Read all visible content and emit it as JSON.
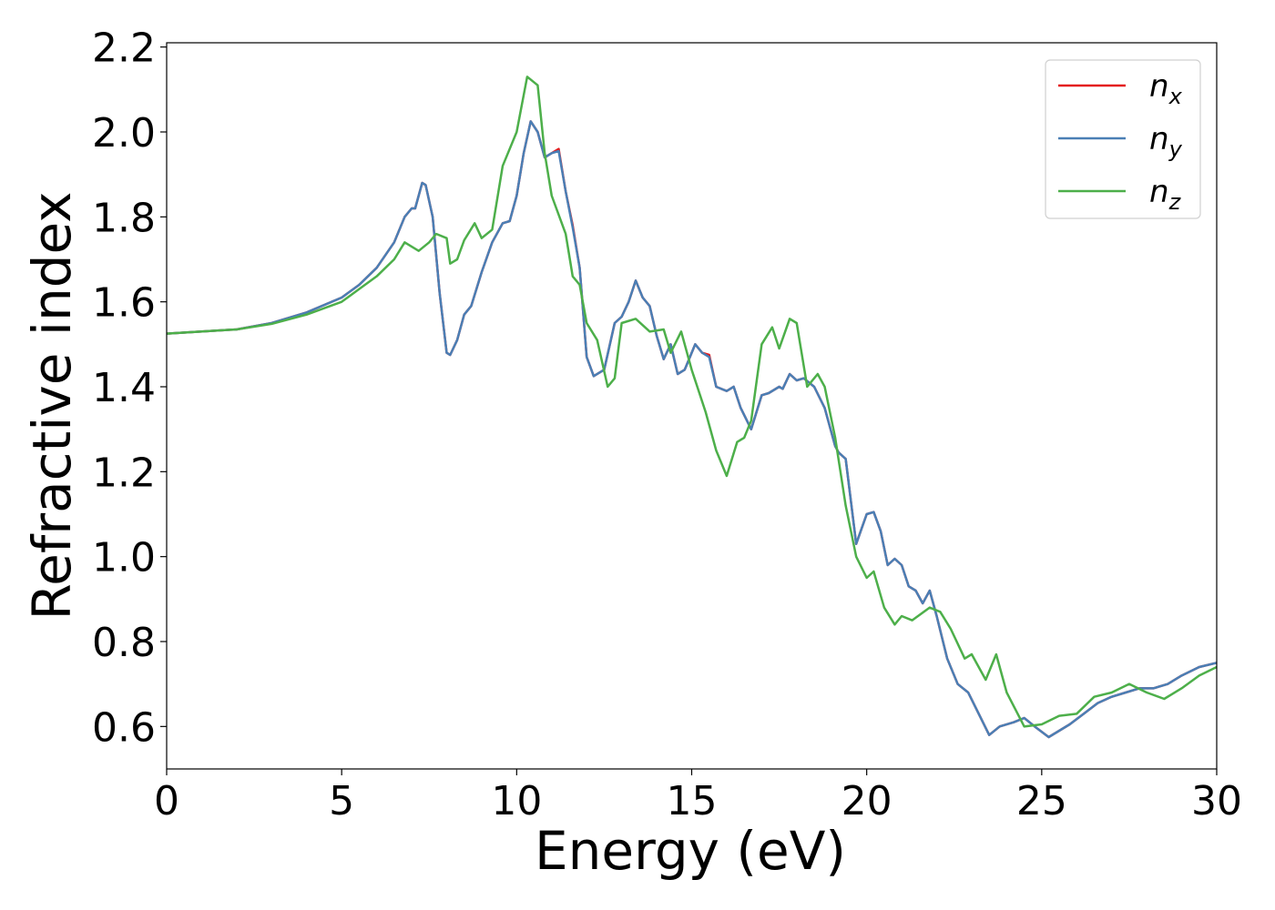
{
  "chart_data": {
    "type": "line",
    "xlabel": "Energy (eV)",
    "ylabel": "Refractive index",
    "xlim": [
      0,
      30
    ],
    "ylim": [
      0.5,
      2.21
    ],
    "xticks": [
      0,
      5,
      10,
      15,
      20,
      25,
      30
    ],
    "yticks": [
      0.6,
      0.8,
      {
        "value": 1.0,
        "label": "1.0"
      },
      1.2,
      1.4,
      1.6,
      1.8,
      {
        "value": 2.0,
        "label": "2.0"
      },
      2.2
    ],
    "legend": "upper right",
    "grid": false,
    "series": [
      {
        "name": "nx",
        "color": "#e41a1c",
        "x": [
          0,
          2,
          3,
          4,
          5,
          5.5,
          6,
          6.5,
          6.8,
          7.0,
          7.1,
          7.3,
          7.4,
          7.6,
          7.8,
          8.0,
          8.1,
          8.3,
          8.5,
          8.7,
          9.0,
          9.3,
          9.6,
          9.8,
          10.0,
          10.2,
          10.4,
          10.6,
          10.8,
          11.0,
          11.2,
          11.4,
          11.6,
          11.8,
          12.0,
          12.2,
          12.5,
          12.8,
          13.0,
          13.2,
          13.4,
          13.6,
          13.8,
          14.0,
          14.2,
          14.4,
          14.6,
          14.8,
          15.1,
          15.3,
          15.5,
          15.7,
          16.0,
          16.2,
          16.4,
          16.7,
          17.0,
          17.2,
          17.5,
          17.6,
          17.8,
          18.0,
          18.2,
          18.5,
          18.8,
          19.1,
          19.2,
          19.4,
          19.7,
          20.0,
          20.2,
          20.4,
          20.6,
          20.8,
          21.0,
          21.2,
          21.4,
          21.6,
          21.8,
          22.0,
          22.3,
          22.6,
          22.9,
          23.2,
          23.5,
          23.8,
          24.2,
          24.5,
          24.8,
          25.2,
          25.5,
          25.8,
          26.2,
          26.6,
          27.0,
          27.4,
          27.8,
          28.2,
          28.6,
          29.0,
          29.5,
          30
        ],
        "values": [
          1.525,
          1.535,
          1.55,
          1.575,
          1.61,
          1.64,
          1.68,
          1.74,
          1.8,
          1.82,
          1.82,
          1.88,
          1.875,
          1.8,
          1.62,
          1.48,
          1.475,
          1.51,
          1.57,
          1.59,
          1.67,
          1.74,
          1.785,
          1.79,
          1.85,
          1.95,
          2.025,
          2.0,
          1.94,
          1.95,
          1.96,
          1.86,
          1.78,
          1.68,
          1.47,
          1.425,
          1.44,
          1.55,
          1.565,
          1.6,
          1.65,
          1.61,
          1.59,
          1.52,
          1.465,
          1.5,
          1.43,
          1.44,
          1.5,
          1.48,
          1.475,
          1.4,
          1.39,
          1.4,
          1.35,
          1.3,
          1.38,
          1.385,
          1.4,
          1.395,
          1.43,
          1.415,
          1.42,
          1.4,
          1.35,
          1.26,
          1.245,
          1.23,
          1.03,
          1.1,
          1.105,
          1.06,
          0.98,
          0.995,
          0.98,
          0.93,
          0.92,
          0.89,
          0.92,
          0.86,
          0.76,
          0.7,
          0.68,
          0.63,
          0.58,
          0.6,
          0.61,
          0.62,
          0.6,
          0.575,
          0.59,
          0.605,
          0.63,
          0.655,
          0.67,
          0.68,
          0.69,
          0.69,
          0.7,
          0.72,
          0.74,
          0.75
        ]
      },
      {
        "name": "ny",
        "color": "#4a7fb5",
        "x": [
          0,
          2,
          3,
          4,
          5,
          5.5,
          6,
          6.5,
          6.8,
          7.0,
          7.1,
          7.3,
          7.4,
          7.6,
          7.8,
          8.0,
          8.1,
          8.3,
          8.5,
          8.7,
          9.0,
          9.3,
          9.6,
          9.8,
          10.0,
          10.2,
          10.4,
          10.6,
          10.8,
          11.0,
          11.2,
          11.4,
          11.6,
          11.8,
          12.0,
          12.2,
          12.5,
          12.8,
          13.0,
          13.2,
          13.4,
          13.6,
          13.8,
          14.0,
          14.2,
          14.4,
          14.6,
          14.8,
          15.1,
          15.3,
          15.5,
          15.7,
          16.0,
          16.2,
          16.4,
          16.7,
          17.0,
          17.2,
          17.5,
          17.6,
          17.8,
          18.0,
          18.2,
          18.5,
          18.8,
          19.1,
          19.2,
          19.4,
          19.7,
          20.0,
          20.2,
          20.4,
          20.6,
          20.8,
          21.0,
          21.2,
          21.4,
          21.6,
          21.8,
          22.0,
          22.3,
          22.6,
          22.9,
          23.2,
          23.5,
          23.8,
          24.2,
          24.5,
          24.8,
          25.2,
          25.5,
          25.8,
          26.2,
          26.6,
          27.0,
          27.4,
          27.8,
          28.2,
          28.6,
          29.0,
          29.5,
          30
        ],
        "values": [
          1.525,
          1.535,
          1.55,
          1.575,
          1.61,
          1.64,
          1.68,
          1.74,
          1.8,
          1.82,
          1.82,
          1.88,
          1.875,
          1.8,
          1.62,
          1.48,
          1.475,
          1.51,
          1.57,
          1.59,
          1.67,
          1.74,
          1.785,
          1.79,
          1.85,
          1.95,
          2.025,
          2.0,
          1.94,
          1.95,
          1.955,
          1.86,
          1.775,
          1.68,
          1.47,
          1.425,
          1.44,
          1.55,
          1.565,
          1.6,
          1.65,
          1.61,
          1.59,
          1.52,
          1.465,
          1.5,
          1.43,
          1.44,
          1.5,
          1.48,
          1.47,
          1.4,
          1.39,
          1.4,
          1.35,
          1.3,
          1.38,
          1.385,
          1.4,
          1.395,
          1.43,
          1.415,
          1.42,
          1.4,
          1.35,
          1.26,
          1.245,
          1.23,
          1.03,
          1.1,
          1.105,
          1.06,
          0.98,
          0.995,
          0.98,
          0.93,
          0.92,
          0.89,
          0.92,
          0.86,
          0.76,
          0.7,
          0.68,
          0.63,
          0.58,
          0.6,
          0.61,
          0.62,
          0.6,
          0.575,
          0.59,
          0.605,
          0.63,
          0.655,
          0.67,
          0.68,
          0.69,
          0.69,
          0.7,
          0.72,
          0.74,
          0.75
        ]
      },
      {
        "name": "nz",
        "color": "#4daf4a",
        "x": [
          0,
          2,
          3,
          4,
          5,
          5.5,
          6,
          6.5,
          6.8,
          7.2,
          7.5,
          7.7,
          8.0,
          8.1,
          8.3,
          8.5,
          8.8,
          9.0,
          9.3,
          9.6,
          9.8,
          10.0,
          10.3,
          10.6,
          10.8,
          11.0,
          11.4,
          11.6,
          11.8,
          12.0,
          12.3,
          12.6,
          12.8,
          13.0,
          13.4,
          13.8,
          14.2,
          14.4,
          14.7,
          15.0,
          15.4,
          15.7,
          16.0,
          16.3,
          16.5,
          16.7,
          17.0,
          17.3,
          17.5,
          17.8,
          18.0,
          18.3,
          18.6,
          18.8,
          19.1,
          19.4,
          19.7,
          20.0,
          20.2,
          20.5,
          20.8,
          21.0,
          21.3,
          21.8,
          22.1,
          22.4,
          22.8,
          23.0,
          23.4,
          23.7,
          24.0,
          24.5,
          25.0,
          25.5,
          26.0,
          26.5,
          27.0,
          27.5,
          28.0,
          28.5,
          29.0,
          29.5,
          30
        ],
        "values": [
          1.525,
          1.535,
          1.548,
          1.57,
          1.6,
          1.63,
          1.66,
          1.7,
          1.74,
          1.72,
          1.74,
          1.76,
          1.75,
          1.69,
          1.7,
          1.745,
          1.785,
          1.75,
          1.77,
          1.92,
          1.96,
          2.0,
          2.13,
          2.11,
          1.95,
          1.85,
          1.76,
          1.66,
          1.64,
          1.55,
          1.51,
          1.4,
          1.42,
          1.55,
          1.56,
          1.53,
          1.535,
          1.48,
          1.53,
          1.44,
          1.34,
          1.25,
          1.19,
          1.27,
          1.28,
          1.32,
          1.5,
          1.54,
          1.49,
          1.56,
          1.55,
          1.4,
          1.43,
          1.4,
          1.28,
          1.12,
          1.0,
          0.95,
          0.965,
          0.88,
          0.84,
          0.86,
          0.85,
          0.88,
          0.87,
          0.83,
          0.76,
          0.77,
          0.71,
          0.77,
          0.68,
          0.6,
          0.605,
          0.625,
          0.63,
          0.67,
          0.68,
          0.7,
          0.68,
          0.665,
          0.69,
          0.72,
          0.74
        ]
      }
    ]
  }
}
